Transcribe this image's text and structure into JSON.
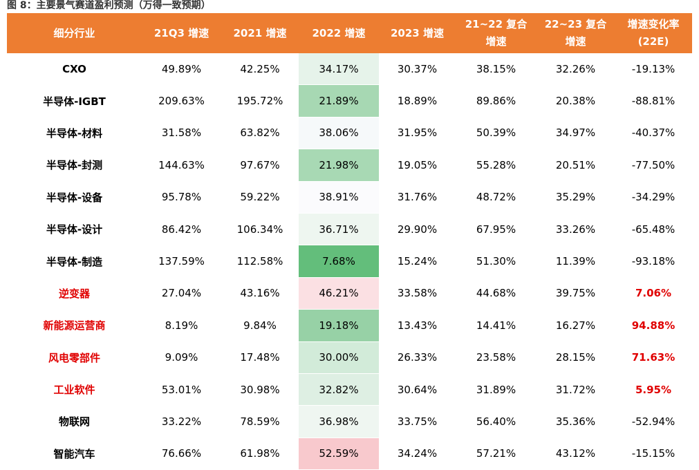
{
  "caption": "图 8：主要景气赛道盈利预测（万得一致预期）",
  "headers": [
    "细分行业",
    "21Q3 增速",
    "2021 增速",
    "2022 增速",
    "2023 增速",
    "21~22 复合增速",
    "22~23 复合增速",
    "增速变化率(22E)"
  ],
  "header_lines": [
    [
      "细分行业"
    ],
    [
      "21Q3 增速"
    ],
    [
      "2021 增速"
    ],
    [
      "2022 增速"
    ],
    [
      "2023 增速"
    ],
    [
      "21~22 复合",
      "增速"
    ],
    [
      "22~23 复合",
      "增速"
    ],
    [
      "增速变化率",
      "(22E)"
    ]
  ],
  "colors": {
    "header_bg": "#ed7d31",
    "header_text": "#ffffff",
    "emphasis_red": "#e00000"
  },
  "rows": [
    {
      "name": "CXO",
      "q3": "49.89%",
      "y2021": "42.25%",
      "y2022": "34.17%",
      "y2023": "30.37%",
      "cagr2122": "38.15%",
      "cagr2223": "32.26%",
      "rate": "-19.13%",
      "highlight": false,
      "fill": "#e6f3ea"
    },
    {
      "name": "半导体-IGBT",
      "q3": "209.63%",
      "y2021": "195.72%",
      "y2022": "21.89%",
      "y2023": "18.89%",
      "cagr2122": "89.86%",
      "cagr2223": "20.38%",
      "rate": "-88.81%",
      "highlight": false,
      "fill": "#a7d8b3"
    },
    {
      "name": "半导体-材料",
      "q3": "31.58%",
      "y2021": "63.82%",
      "y2022": "38.06%",
      "y2023": "31.95%",
      "cagr2122": "50.39%",
      "cagr2223": "34.97%",
      "rate": "-40.37%",
      "highlight": false,
      "fill": "#f6f9fa"
    },
    {
      "name": "半导体-封测",
      "q3": "144.63%",
      "y2021": "97.67%",
      "y2022": "21.98%",
      "y2023": "19.05%",
      "cagr2122": "55.28%",
      "cagr2223": "20.51%",
      "rate": "-77.50%",
      "highlight": false,
      "fill": "#a8d9b4"
    },
    {
      "name": "半导体-设备",
      "q3": "95.78%",
      "y2021": "59.22%",
      "y2022": "38.91%",
      "y2023": "31.76%",
      "cagr2122": "48.72%",
      "cagr2223": "35.29%",
      "rate": "-34.29%",
      "highlight": false,
      "fill": "#fbfbfd"
    },
    {
      "name": "半导体-设计",
      "q3": "86.42%",
      "y2021": "106.34%",
      "y2022": "36.71%",
      "y2023": "29.90%",
      "cagr2122": "67.95%",
      "cagr2223": "33.26%",
      "rate": "-65.48%",
      "highlight": false,
      "fill": "#eef6f0"
    },
    {
      "name": "半导体-制造",
      "q3": "137.59%",
      "y2021": "112.58%",
      "y2022": "7.68%",
      "y2023": "15.24%",
      "cagr2122": "51.30%",
      "cagr2223": "11.39%",
      "rate": "-93.18%",
      "highlight": false,
      "fill": "#63be7b"
    },
    {
      "name": "逆变器",
      "q3": "27.04%",
      "y2021": "43.16%",
      "y2022": "46.21%",
      "y2023": "33.58%",
      "cagr2122": "44.68%",
      "cagr2223": "39.75%",
      "rate": "7.06%",
      "highlight": true,
      "fill": "#fbe0e3"
    },
    {
      "name": "新能源运营商",
      "q3": "8.19%",
      "y2021": "9.84%",
      "y2022": "19.18%",
      "y2023": "13.43%",
      "cagr2122": "14.41%",
      "cagr2223": "16.27%",
      "rate": "94.88%",
      "highlight": true,
      "fill": "#97d1a6"
    },
    {
      "name": "风电零部件",
      "q3": "9.09%",
      "y2021": "17.48%",
      "y2022": "30.00%",
      "y2023": "26.33%",
      "cagr2122": "23.58%",
      "cagr2223": "28.15%",
      "rate": "71.63%",
      "highlight": true,
      "fill": "#d2ebd9"
    },
    {
      "name": "工业软件",
      "q3": "53.01%",
      "y2021": "30.98%",
      "y2022": "32.82%",
      "y2023": "30.64%",
      "cagr2122": "31.89%",
      "cagr2223": "31.72%",
      "rate": "5.95%",
      "highlight": true,
      "fill": "#deefe3"
    },
    {
      "name": "物联网",
      "q3": "33.22%",
      "y2021": "78.59%",
      "y2022": "36.98%",
      "y2023": "33.75%",
      "cagr2122": "56.40%",
      "cagr2223": "35.36%",
      "rate": "-52.94%",
      "highlight": false,
      "fill": "#eff6f1"
    },
    {
      "name": "智能汽车",
      "q3": "76.66%",
      "y2021": "61.98%",
      "y2022": "52.59%",
      "y2023": "34.24%",
      "cagr2122": "57.21%",
      "cagr2223": "43.12%",
      "rate": "-15.15%",
      "highlight": false,
      "fill": "#f8c9cd"
    }
  ]
}
